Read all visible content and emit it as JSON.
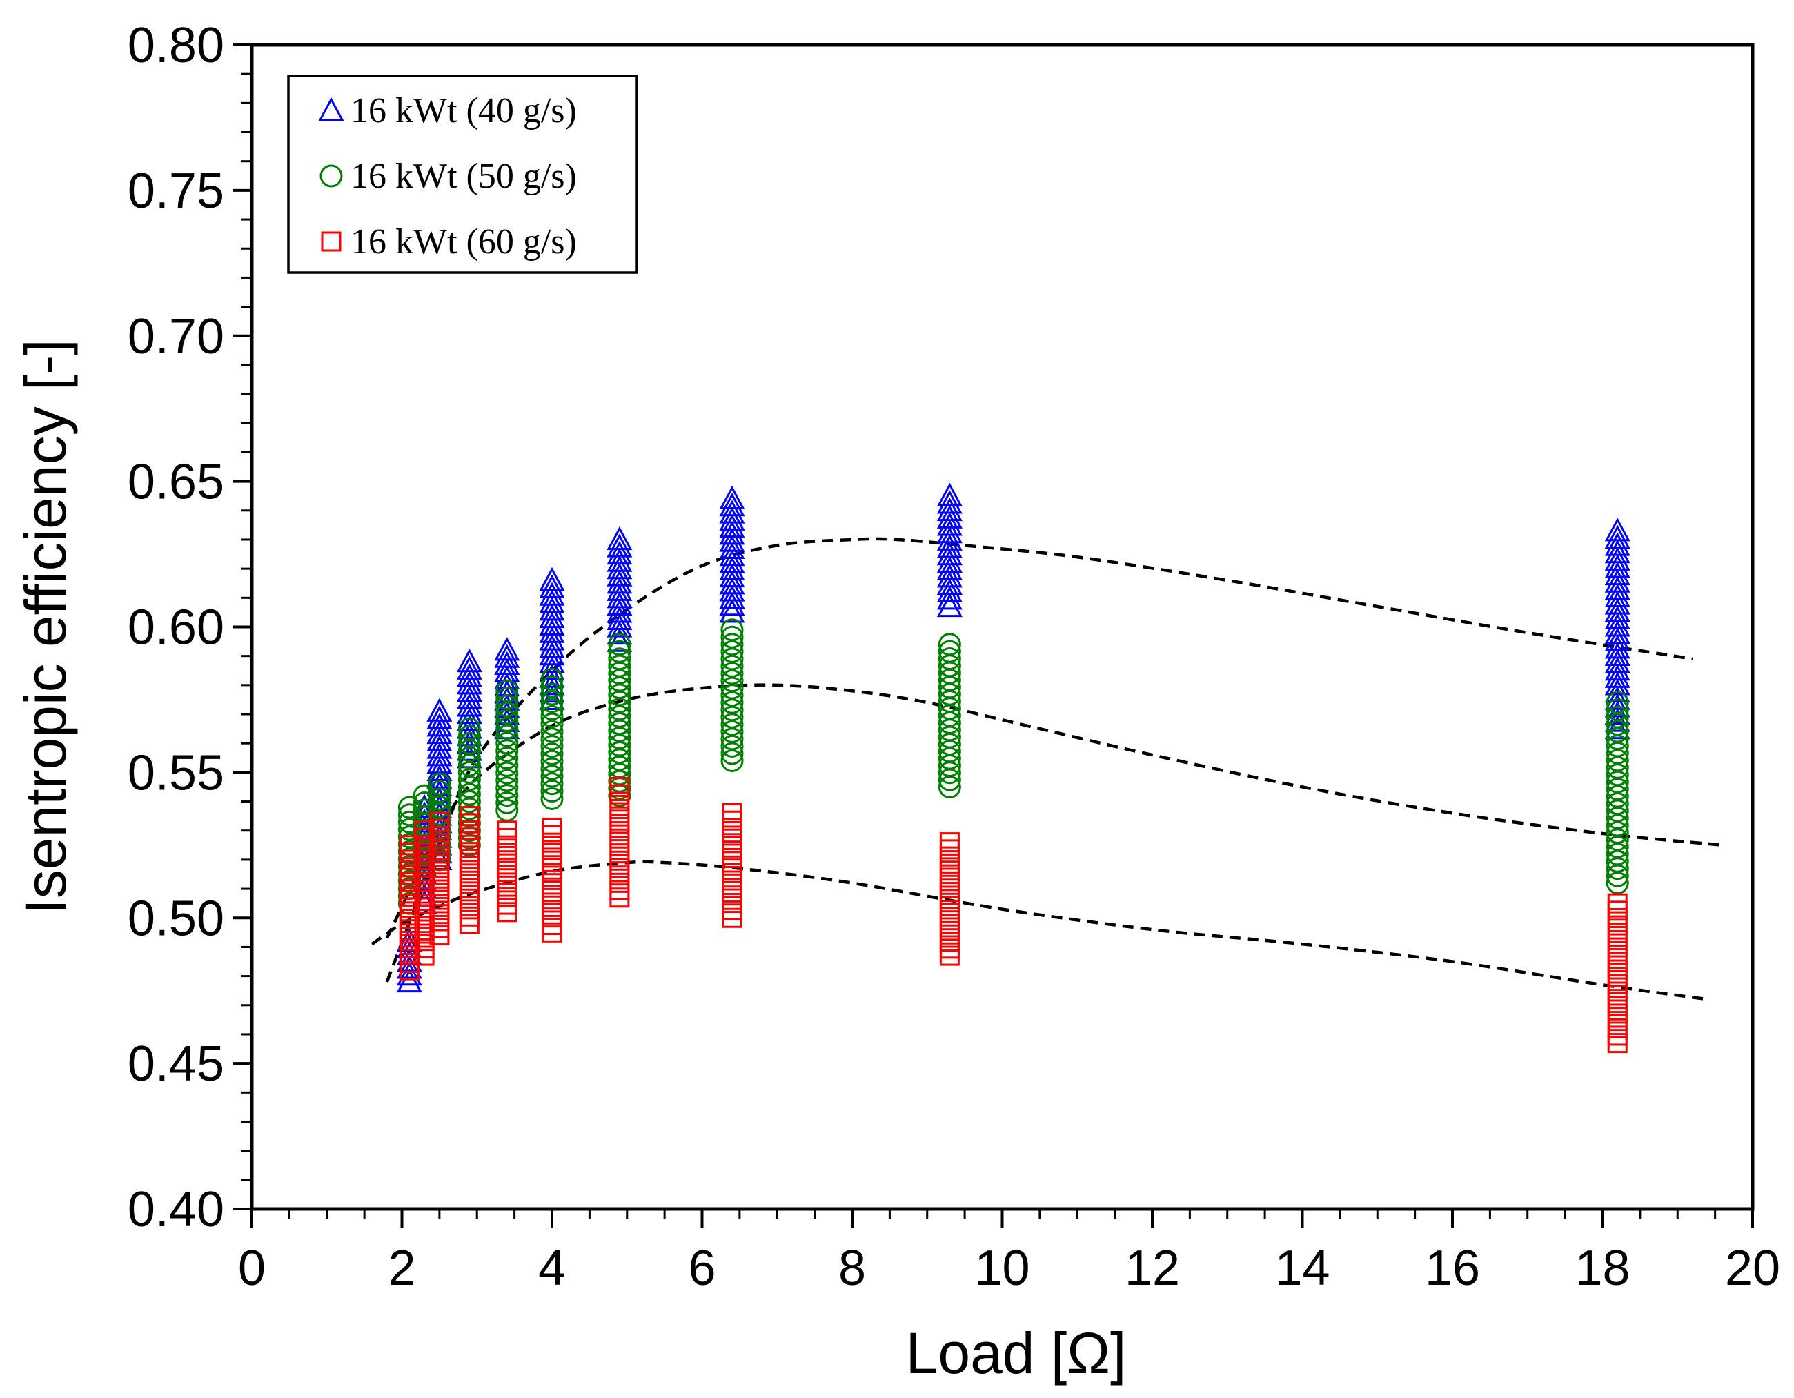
{
  "chart_data": {
    "type": "scatter",
    "title": "",
    "xlabel": "Load [Ω]",
    "ylabel": "Isentropic efficiency [-]",
    "xlim": [
      0,
      20
    ],
    "ylim": [
      0.4,
      0.8
    ],
    "x_ticks": [
      "0",
      "2",
      "4",
      "6",
      "8",
      "10",
      "12",
      "14",
      "16",
      "18",
      "20"
    ],
    "y_ticks": [
      "0.40",
      "0.45",
      "0.50",
      "0.55",
      "0.60",
      "0.65",
      "0.70",
      "0.75",
      "0.80"
    ],
    "legend_position": "top-left",
    "grid": false,
    "series": [
      {
        "name": "16 kWt (40 g/s)",
        "marker": "triangle",
        "color": "#0000ff",
        "groups": [
          {
            "x": 2.1,
            "min": 0.478,
            "max": 0.492
          },
          {
            "x": 2.3,
            "min": 0.505,
            "max": 0.538
          },
          {
            "x": 2.5,
            "min": 0.52,
            "max": 0.571
          },
          {
            "x": 2.9,
            "min": 0.555,
            "max": 0.588
          },
          {
            "x": 3.4,
            "min": 0.565,
            "max": 0.592
          },
          {
            "x": 4.0,
            "min": 0.575,
            "max": 0.616
          },
          {
            "x": 4.9,
            "min": 0.595,
            "max": 0.63
          },
          {
            "x": 6.4,
            "min": 0.605,
            "max": 0.644
          },
          {
            "x": 9.3,
            "min": 0.607,
            "max": 0.645
          },
          {
            "x": 18.2,
            "min": 0.565,
            "max": 0.633
          }
        ]
      },
      {
        "name": "16 kWt (50 g/s)",
        "marker": "circle",
        "color": "#008000",
        "groups": [
          {
            "x": 2.1,
            "min": 0.505,
            "max": 0.538
          },
          {
            "x": 2.3,
            "min": 0.515,
            "max": 0.542
          },
          {
            "x": 2.5,
            "min": 0.52,
            "max": 0.546
          },
          {
            "x": 2.9,
            "min": 0.525,
            "max": 0.565
          },
          {
            "x": 3.4,
            "min": 0.537,
            "max": 0.578
          },
          {
            "x": 4.0,
            "min": 0.541,
            "max": 0.582
          },
          {
            "x": 4.9,
            "min": 0.542,
            "max": 0.594
          },
          {
            "x": 6.4,
            "min": 0.554,
            "max": 0.599
          },
          {
            "x": 9.3,
            "min": 0.545,
            "max": 0.594
          },
          {
            "x": 18.2,
            "min": 0.512,
            "max": 0.574
          }
        ]
      },
      {
        "name": "16 kWt (60 g/s)",
        "marker": "square",
        "color": "#ff0000",
        "groups": [
          {
            "x": 2.1,
            "min": 0.482,
            "max": 0.525
          },
          {
            "x": 2.3,
            "min": 0.487,
            "max": 0.53
          },
          {
            "x": 2.5,
            "min": 0.494,
            "max": 0.533
          },
          {
            "x": 2.9,
            "min": 0.498,
            "max": 0.535
          },
          {
            "x": 3.4,
            "min": 0.502,
            "max": 0.53
          },
          {
            "x": 4.0,
            "min": 0.495,
            "max": 0.531
          },
          {
            "x": 4.9,
            "min": 0.507,
            "max": 0.545
          },
          {
            "x": 6.4,
            "min": 0.5,
            "max": 0.536
          },
          {
            "x": 9.3,
            "min": 0.487,
            "max": 0.526
          },
          {
            "x": 18.2,
            "min": 0.457,
            "max": 0.505
          }
        ]
      }
    ],
    "fit_curves": [
      {
        "style": "dashed",
        "color": "#000000",
        "x": [
          1.8,
          2.5,
          3.0,
          4.0,
          5.0,
          6.0,
          7.0,
          8.0,
          8.6,
          9.5,
          11.0,
          13.0,
          15.0,
          17.0,
          19.2
        ],
        "y": [
          0.478,
          0.525,
          0.555,
          0.585,
          0.606,
          0.621,
          0.628,
          0.63,
          0.63,
          0.628,
          0.624,
          0.616,
          0.607,
          0.598,
          0.589
        ]
      },
      {
        "style": "dashed",
        "color": "#000000",
        "x": [
          1.8,
          2.5,
          3.0,
          4.0,
          5.0,
          6.0,
          7.0,
          8.0,
          9.0,
          10.5,
          12.0,
          14.0,
          16.0,
          18.0,
          19.6
        ],
        "y": [
          0.493,
          0.53,
          0.548,
          0.566,
          0.575,
          0.579,
          0.58,
          0.578,
          0.574,
          0.565,
          0.556,
          0.545,
          0.536,
          0.529,
          0.525
        ]
      },
      {
        "style": "dashed",
        "color": "#000000",
        "x": [
          1.6,
          2.0,
          2.5,
          3.0,
          4.0,
          5.0,
          5.5,
          6.5,
          8.0,
          10.0,
          12.0,
          14.0,
          16.0,
          18.0,
          19.4
        ],
        "y": [
          0.491,
          0.498,
          0.504,
          0.509,
          0.516,
          0.519,
          0.519,
          0.517,
          0.512,
          0.503,
          0.496,
          0.491,
          0.485,
          0.477,
          0.472
        ]
      }
    ]
  }
}
